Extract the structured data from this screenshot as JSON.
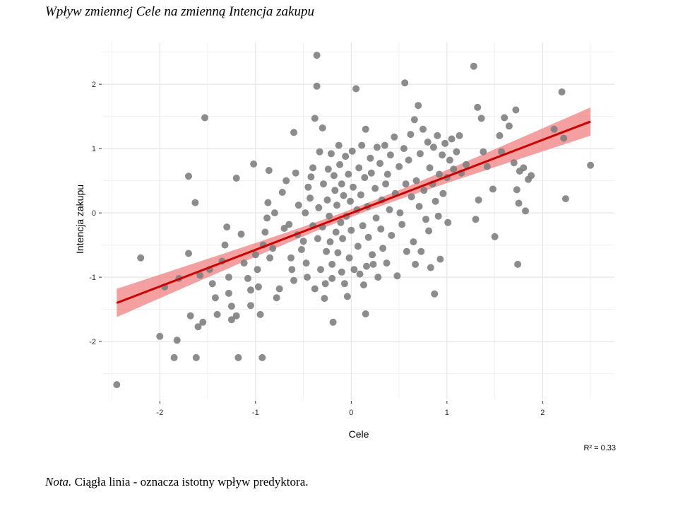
{
  "title": "Wpływ zmiennej Cele na zmienną Intencja zakupu",
  "note": {
    "label": "Nota.",
    "text": "Ciągła linia - oznacza istotny wpływ predyktora."
  },
  "r2_label": "R² = 0.33",
  "colors": {
    "points": "#7f7f7f",
    "line": "#cc0000",
    "band": "#f08080",
    "grid": "#e6e6e6"
  },
  "chart_data": {
    "type": "scatter",
    "xlabel": "Cele",
    "ylabel": "Intencja zakupu",
    "xlim": [
      -2.6,
      2.75
    ],
    "ylim": [
      -2.9,
      2.65
    ],
    "xticks": [
      -2,
      -1,
      0,
      1,
      2
    ],
    "yticks": [
      -2,
      -1,
      0,
      1,
      2
    ],
    "grid": true,
    "regression": {
      "x": [
        -2.45,
        2.5
      ],
      "y": [
        -1.4,
        1.42
      ],
      "band_halfwidth_ends": 0.22,
      "band_halfwidth_center": 0.06
    },
    "points": [
      [
        -2.45,
        -2.67
      ],
      [
        -2.2,
        -0.7
      ],
      [
        -2.0,
        -1.92
      ],
      [
        -1.95,
        -1.15
      ],
      [
        -1.85,
        -2.25
      ],
      [
        -1.82,
        -1.98
      ],
      [
        -1.8,
        -1.02
      ],
      [
        -1.7,
        0.57
      ],
      [
        -1.7,
        -0.63
      ],
      [
        -1.68,
        -1.6
      ],
      [
        -1.63,
        0.16
      ],
      [
        -1.62,
        -2.25
      ],
      [
        -1.6,
        -1.77
      ],
      [
        -1.55,
        -1.7
      ],
      [
        -1.53,
        1.48
      ],
      [
        -1.58,
        -0.97
      ],
      [
        -1.48,
        -0.88
      ],
      [
        -1.45,
        -1.1
      ],
      [
        -1.42,
        -1.32
      ],
      [
        -1.4,
        -1.58
      ],
      [
        -1.35,
        -0.75
      ],
      [
        -1.32,
        -0.5
      ],
      [
        -1.3,
        -0.22
      ],
      [
        -1.28,
        -1.0
      ],
      [
        -1.28,
        -1.25
      ],
      [
        -1.25,
        -1.45
      ],
      [
        -1.25,
        -1.66
      ],
      [
        -1.2,
        -1.6
      ],
      [
        -1.2,
        0.54
      ],
      [
        -1.18,
        -2.25
      ],
      [
        -1.15,
        -0.33
      ],
      [
        -1.12,
        -0.78
      ],
      [
        -1.08,
        -1.02
      ],
      [
        -1.05,
        -1.2
      ],
      [
        -1.05,
        -1.44
      ],
      [
        -1.02,
        0.76
      ],
      [
        -1.0,
        -0.65
      ],
      [
        -0.98,
        -0.88
      ],
      [
        -0.97,
        -1.15
      ],
      [
        -0.95,
        -1.58
      ],
      [
        -0.93,
        -2.25
      ],
      [
        -0.92,
        -0.5
      ],
      [
        -0.9,
        -0.3
      ],
      [
        -0.88,
        -0.08
      ],
      [
        -0.87,
        0.16
      ],
      [
        -0.86,
        0.66
      ],
      [
        -0.85,
        -0.7
      ],
      [
        -0.82,
        -0.55
      ],
      [
        -0.8,
        0.0
      ],
      [
        -0.78,
        -1.32
      ],
      [
        -0.75,
        -1.18
      ],
      [
        -0.72,
        0.32
      ],
      [
        -0.7,
        -0.24
      ],
      [
        -0.68,
        0.5
      ],
      [
        -0.65,
        -0.18
      ],
      [
        -0.63,
        -0.7
      ],
      [
        -0.62,
        -0.88
      ],
      [
        -0.6,
        -1.05
      ],
      [
        -0.6,
        1.25
      ],
      [
        -0.58,
        0.62
      ],
      [
        -0.56,
        -0.34
      ],
      [
        -0.55,
        0.12
      ],
      [
        -0.52,
        -0.57
      ],
      [
        -0.5,
        -0.44
      ],
      [
        -0.48,
        0.0
      ],
      [
        -0.47,
        -0.78
      ],
      [
        -0.46,
        -1.0
      ],
      [
        -0.45,
        0.4
      ],
      [
        -0.43,
        0.23
      ],
      [
        -0.42,
        0.56
      ],
      [
        -0.4,
        0.7
      ],
      [
        -0.4,
        -0.2
      ],
      [
        -0.38,
        1.47
      ],
      [
        -0.38,
        -1.18
      ],
      [
        -0.36,
        2.45
      ],
      [
        -0.36,
        1.97
      ],
      [
        -0.35,
        -0.4
      ],
      [
        -0.34,
        0.08
      ],
      [
        -0.33,
        0.95
      ],
      [
        -0.32,
        -0.88
      ],
      [
        -0.3,
        1.32
      ],
      [
        -0.3,
        -0.22
      ],
      [
        -0.29,
        0.45
      ],
      [
        -0.28,
        -1.33
      ],
      [
        -0.27,
        -1.1
      ],
      [
        -0.26,
        -0.6
      ],
      [
        -0.25,
        0.2
      ],
      [
        -0.24,
        0.68
      ],
      [
        -0.23,
        -0.05
      ],
      [
        -0.22,
        -0.45
      ],
      [
        -0.21,
        0.92
      ],
      [
        -0.2,
        -0.8
      ],
      [
        -0.2,
        -1.02
      ],
      [
        -0.19,
        -1.7
      ],
      [
        -0.18,
        0.58
      ],
      [
        -0.17,
        0.35
      ],
      [
        -0.16,
        -0.3
      ],
      [
        -0.15,
        0.12
      ],
      [
        -0.14,
        -0.62
      ],
      [
        -0.13,
        1.05
      ],
      [
        -0.12,
        0.75
      ],
      [
        -0.11,
        -0.15
      ],
      [
        -0.1,
        -0.92
      ],
      [
        -0.1,
        0.45
      ],
      [
        -0.09,
        -0.4
      ],
      [
        -0.08,
        0.27
      ],
      [
        -0.07,
        -1.1
      ],
      [
        -0.06,
        0.88
      ],
      [
        -0.05,
        -0.05
      ],
      [
        -0.04,
        -1.3
      ],
      [
        -0.03,
        0.6
      ],
      [
        -0.02,
        -0.7
      ],
      [
        -0.01,
        0.18
      ],
      [
        0.0,
        -0.27
      ],
      [
        0.01,
        0.96
      ],
      [
        0.02,
        0.4
      ],
      [
        0.03,
        -0.88
      ],
      [
        0.05,
        1.93
      ],
      [
        0.06,
        0.05
      ],
      [
        0.07,
        -0.52
      ],
      [
        0.08,
        0.7
      ],
      [
        0.09,
        -0.95
      ],
      [
        0.1,
        0.28
      ],
      [
        0.11,
        1.05
      ],
      [
        0.12,
        -0.2
      ],
      [
        0.13,
        -1.12
      ],
      [
        0.14,
        0.55
      ],
      [
        0.15,
        1.3
      ],
      [
        0.15,
        -1.57
      ],
      [
        0.16,
        -0.83
      ],
      [
        0.17,
        0.1
      ],
      [
        0.18,
        -0.38
      ],
      [
        0.2,
        0.85
      ],
      [
        0.21,
        0.62
      ],
      [
        0.22,
        -0.65
      ],
      [
        0.23,
        -0.8
      ],
      [
        0.25,
        0.38
      ],
      [
        0.26,
        -0.08
      ],
      [
        0.27,
        1.02
      ],
      [
        0.28,
        -1.0
      ],
      [
        0.3,
        0.77
      ],
      [
        0.31,
        -0.25
      ],
      [
        0.32,
        0.2
      ],
      [
        0.33,
        -0.55
      ],
      [
        0.35,
        1.05
      ],
      [
        0.36,
        0.45
      ],
      [
        0.37,
        -0.78
      ],
      [
        0.38,
        0.6
      ],
      [
        0.4,
        0.05
      ],
      [
        0.41,
        0.9
      ],
      [
        0.42,
        -0.35
      ],
      [
        0.45,
        1.18
      ],
      [
        0.46,
        0.3
      ],
      [
        0.48,
        -0.98
      ],
      [
        0.5,
        0.72
      ],
      [
        0.51,
        0.0
      ],
      [
        0.53,
        -0.18
      ],
      [
        0.55,
        1.0
      ],
      [
        0.56,
        2.02
      ],
      [
        0.57,
        0.45
      ],
      [
        0.58,
        -0.6
      ],
      [
        0.6,
        0.82
      ],
      [
        0.62,
        1.22
      ],
      [
        0.63,
        0.25
      ],
      [
        0.65,
        -0.45
      ],
      [
        0.66,
        1.45
      ],
      [
        0.67,
        -0.8
      ],
      [
        0.68,
        0.5
      ],
      [
        0.7,
        1.67
      ],
      [
        0.71,
        0.1
      ],
      [
        0.72,
        0.92
      ],
      [
        0.73,
        -0.6
      ],
      [
        0.75,
        1.3
      ],
      [
        0.76,
        0.35
      ],
      [
        0.78,
        -0.1
      ],
      [
        0.8,
        1.1
      ],
      [
        0.81,
        -0.28
      ],
      [
        0.82,
        0.7
      ],
      [
        0.83,
        -0.85
      ],
      [
        0.85,
        0.45
      ],
      [
        0.86,
        1.02
      ],
      [
        0.87,
        -1.26
      ],
      [
        0.88,
        0.18
      ],
      [
        0.9,
        1.2
      ],
      [
        0.91,
        -0.05
      ],
      [
        0.92,
        0.6
      ],
      [
        0.93,
        -0.72
      ],
      [
        0.95,
        0.9
      ],
      [
        0.96,
        0.3
      ],
      [
        0.98,
        1.08
      ],
      [
        1.0,
        0.55
      ],
      [
        1.01,
        -0.15
      ],
      [
        1.03,
        0.82
      ],
      [
        1.05,
        1.15
      ],
      [
        1.07,
        0.68
      ],
      [
        1.1,
        0.95
      ],
      [
        1.13,
        1.2
      ],
      [
        1.15,
        0.62
      ],
      [
        1.2,
        0.75
      ],
      [
        1.28,
        2.28
      ],
      [
        1.3,
        -0.1
      ],
      [
        1.32,
        1.64
      ],
      [
        1.33,
        0.2
      ],
      [
        1.36,
        1.47
      ],
      [
        1.38,
        0.95
      ],
      [
        1.42,
        0.72
      ],
      [
        1.48,
        0.37
      ],
      [
        1.5,
        -0.37
      ],
      [
        1.55,
        1.2
      ],
      [
        1.57,
        0.95
      ],
      [
        1.6,
        1.48
      ],
      [
        1.65,
        1.35
      ],
      [
        1.7,
        0.78
      ],
      [
        1.72,
        1.6
      ],
      [
        1.73,
        0.36
      ],
      [
        1.74,
        -0.8
      ],
      [
        1.75,
        0.15
      ],
      [
        1.76,
        0.65
      ],
      [
        1.8,
        0.7
      ],
      [
        1.82,
        0.03
      ],
      [
        1.85,
        0.52
      ],
      [
        1.88,
        0.58
      ],
      [
        2.12,
        1.3
      ],
      [
        2.2,
        1.88
      ],
      [
        2.22,
        1.16
      ],
      [
        2.24,
        0.22
      ],
      [
        2.5,
        0.74
      ]
    ]
  }
}
